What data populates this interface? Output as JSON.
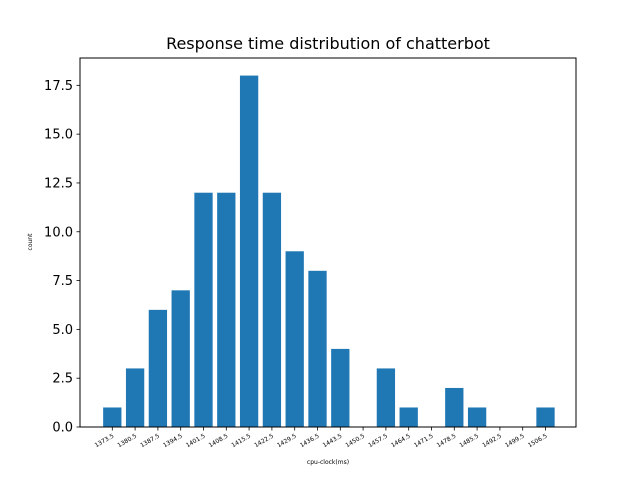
{
  "chart_data": {
    "type": "bar",
    "title": "Response time distribution of chatterbot",
    "xlabel": "cpu-clock(ms)",
    "ylabel": "count",
    "ylim": [
      0,
      18.9
    ],
    "yticks": [
      "0.0",
      "2.5",
      "5.0",
      "7.5",
      "10.0",
      "12.5",
      "15.0",
      "17.5"
    ],
    "categories": [
      "1373.5",
      "1380.5",
      "1387.5",
      "1394.5",
      "1401.5",
      "1408.5",
      "1415.5",
      "1422.5",
      "1429.5",
      "1436.5",
      "1443.5",
      "1450.5",
      "1457.5",
      "1464.5",
      "1471.5",
      "1478.5",
      "1485.5",
      "1492.5",
      "1499.5",
      "1506.5"
    ],
    "values": [
      1,
      3,
      6,
      7,
      12,
      12,
      18,
      12,
      9,
      8,
      4,
      0,
      3,
      1,
      0,
      2,
      1,
      0,
      0,
      1
    ],
    "bar_color": "#1f77b4",
    "grid": false
  }
}
